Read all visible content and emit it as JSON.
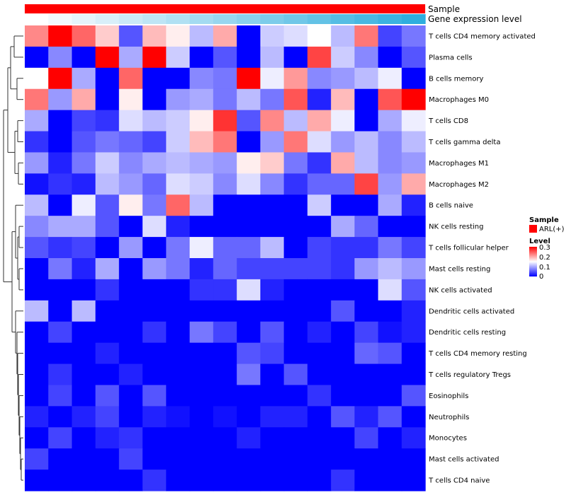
{
  "chart_data": {
    "type": "heatmap",
    "title": "",
    "annotations": [
      {
        "name": "Sample",
        "color": "#ff0000"
      },
      {
        "name": "Gene expression level",
        "colors": [
          "#ffffff",
          "#f2f9fd",
          "#e5f4fb",
          "#d8eff9",
          "#cbeaf7",
          "#bee5f5",
          "#b1e0f3",
          "#a4dbf1",
          "#97d6ef",
          "#8ad1ed",
          "#7dccea",
          "#70c7e8",
          "#63c2e6",
          "#56bde4",
          "#49b8e2",
          "#3cb3e0",
          "#2faede"
        ]
      },
      {
        "name": "ARL(+)"
      }
    ],
    "rows": [
      "T cells CD4 memory activated",
      "Plasma cells",
      "B cells memory",
      "Macrophages M0",
      "T cells CD8",
      "T cells gamma delta",
      "Macrophages M1",
      "Macrophages M2",
      "B cells naive",
      "NK cells resting",
      "T cells follicular helper",
      "Mast cells resting",
      "NK cells activated",
      "Dendritic cells activated",
      "Dendritic cells resting",
      "T cells CD4 memory resting",
      "T cells regulatory  Tregs",
      "Eosinophils",
      "Neutrophils",
      "Monocytes",
      "Mast cells activated",
      "T cells CD4 naive"
    ],
    "values": [
      [
        0.22,
        0.3,
        0.24,
        0.18,
        0.05,
        0.19,
        0.16,
        0.11,
        0.2,
        0.0,
        0.12,
        0.13,
        0.15,
        0.11,
        0.23,
        0.04,
        0.07
      ],
      [
        0.0,
        0.08,
        0.0,
        0.3,
        0.1,
        0.3,
        0.12,
        0.0,
        0.05,
        0.0,
        0.11,
        0.0,
        0.26,
        0.12,
        0.08,
        0.0,
        0.05
      ],
      [
        0.15,
        0.3,
        0.1,
        0.0,
        0.24,
        0.0,
        0.0,
        0.08,
        0.07,
        0.3,
        0.14,
        0.21,
        0.08,
        0.09,
        0.11,
        0.14,
        0.0
      ],
      [
        0.23,
        0.09,
        0.2,
        0.0,
        0.16,
        0.0,
        0.09,
        0.1,
        0.07,
        0.11,
        0.07,
        0.25,
        0.02,
        0.19,
        0.0,
        0.25,
        0.3
      ],
      [
        0.1,
        0.0,
        0.04,
        0.03,
        0.13,
        0.11,
        0.12,
        0.16,
        0.27,
        0.05,
        0.22,
        0.11,
        0.2,
        0.14,
        0.0,
        0.1,
        0.14
      ],
      [
        0.03,
        0.0,
        0.05,
        0.07,
        0.06,
        0.04,
        0.12,
        0.19,
        0.23,
        0.0,
        0.09,
        0.23,
        0.13,
        0.09,
        0.11,
        0.08,
        0.11
      ],
      [
        0.09,
        0.02,
        0.07,
        0.12,
        0.08,
        0.1,
        0.11,
        0.1,
        0.09,
        0.16,
        0.18,
        0.07,
        0.03,
        0.2,
        0.11,
        0.08,
        0.09
      ],
      [
        0.01,
        0.03,
        0.02,
        0.11,
        0.09,
        0.06,
        0.13,
        0.12,
        0.08,
        0.13,
        0.08,
        0.03,
        0.06,
        0.06,
        0.26,
        0.09,
        0.2
      ],
      [
        0.11,
        0.0,
        0.14,
        0.05,
        0.16,
        0.07,
        0.24,
        0.11,
        0.0,
        0.0,
        0.0,
        0.0,
        0.12,
        0.0,
        0.0,
        0.1,
        0.02
      ],
      [
        0.08,
        0.1,
        0.1,
        0.05,
        0.0,
        0.13,
        0.02,
        0.0,
        0.0,
        0.0,
        0.0,
        0.0,
        0.0,
        0.1,
        0.06,
        0.0,
        0.0
      ],
      [
        0.05,
        0.03,
        0.04,
        0.0,
        0.09,
        0.0,
        0.07,
        0.14,
        0.06,
        0.06,
        0.11,
        0.0,
        0.04,
        0.03,
        0.03,
        0.07,
        0.04
      ],
      [
        0.0,
        0.07,
        0.02,
        0.1,
        0.0,
        0.09,
        0.07,
        0.02,
        0.06,
        0.04,
        0.04,
        0.04,
        0.04,
        0.03,
        0.09,
        0.11,
        0.09
      ],
      [
        0.0,
        0.0,
        0.0,
        0.03,
        0.0,
        0.0,
        0.0,
        0.03,
        0.03,
        0.13,
        0.02,
        0.0,
        0.0,
        0.0,
        0.0,
        0.13,
        0.05
      ],
      [
        0.11,
        0.0,
        0.11,
        0.0,
        0.0,
        0.0,
        0.0,
        0.0,
        0.0,
        0.0,
        0.0,
        0.0,
        0.0,
        0.05,
        0.0,
        0.0,
        0.02
      ],
      [
        0.0,
        0.04,
        0.0,
        0.0,
        0.0,
        0.03,
        0.0,
        0.07,
        0.04,
        0.0,
        0.05,
        0.0,
        0.02,
        0.0,
        0.04,
        0.01,
        0.02
      ],
      [
        0.0,
        0.0,
        0.0,
        0.02,
        0.0,
        0.0,
        0.0,
        0.0,
        0.0,
        0.05,
        0.04,
        0.0,
        0.0,
        0.0,
        0.06,
        0.05,
        0.0
      ],
      [
        0.0,
        0.03,
        0.0,
        0.0,
        0.02,
        0.0,
        0.0,
        0.0,
        0.0,
        0.07,
        0.0,
        0.05,
        0.0,
        0.0,
        0.0,
        0.0,
        0.0
      ],
      [
        0.0,
        0.04,
        0.0,
        0.05,
        0.0,
        0.05,
        0.0,
        0.0,
        0.0,
        0.0,
        0.0,
        0.0,
        0.03,
        0.0,
        0.0,
        0.0,
        0.05
      ],
      [
        0.02,
        0.0,
        0.02,
        0.04,
        0.0,
        0.02,
        0.01,
        0.0,
        0.01,
        0.0,
        0.02,
        0.02,
        0.0,
        0.05,
        0.02,
        0.05,
        0.0
      ],
      [
        0.0,
        0.04,
        0.0,
        0.02,
        0.03,
        0.0,
        0.0,
        0.0,
        0.0,
        0.02,
        0.0,
        0.0,
        0.0,
        0.0,
        0.04,
        0.0,
        0.02
      ],
      [
        0.04,
        0.0,
        0.0,
        0.0,
        0.04,
        0.0,
        0.0,
        0.0,
        0.0,
        0.0,
        0.0,
        0.0,
        0.0,
        0.0,
        0.0,
        0.0,
        0.0
      ],
      [
        0.0,
        0.0,
        0.0,
        0.0,
        0.0,
        0.03,
        0.0,
        0.0,
        0.0,
        0.0,
        0.0,
        0.0,
        0.0,
        0.03,
        0.0,
        0.0,
        0.0
      ]
    ],
    "color_scale": {
      "low": "#0000ff",
      "mid": "#ffffff",
      "high": "#ff0000",
      "range": [
        0,
        0.3
      ]
    },
    "legend": {
      "position": "right",
      "sample_title": "Sample",
      "sample_entry": "ARL(+)",
      "level_title": "Level",
      "ticks": [
        "0.3",
        "0.2",
        "0.1",
        "0"
      ]
    }
  }
}
